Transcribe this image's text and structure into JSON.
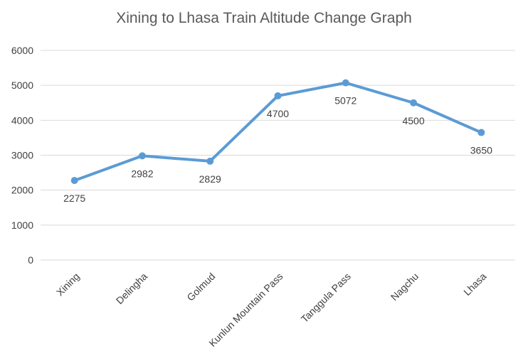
{
  "chart_data": {
    "type": "line",
    "title": "Xining to Lhasa Train Altitude Change Graph",
    "xlabel": "",
    "ylabel": "",
    "categories": [
      "Xining",
      "Delingha",
      "Golmud",
      "Kunlun Mountain Pass",
      "Tanggula Pass",
      "Nagchu",
      "Lhasa"
    ],
    "series": [
      {
        "values": [
          2275,
          2982,
          2829,
          4700,
          5072,
          4500,
          3650
        ]
      }
    ],
    "ylim": [
      0,
      6000
    ],
    "yticks": [
      0,
      1000,
      2000,
      3000,
      4000,
      5000,
      6000
    ],
    "grid": true,
    "legend": "none",
    "data_labels": [
      "2275",
      "2982",
      "2829",
      "4700",
      "5072",
      "4500",
      "3650"
    ],
    "colors": {
      "line": "#5b9bd5",
      "grid": "#d9d9d9",
      "text": "#404040",
      "title": "#595959"
    }
  }
}
